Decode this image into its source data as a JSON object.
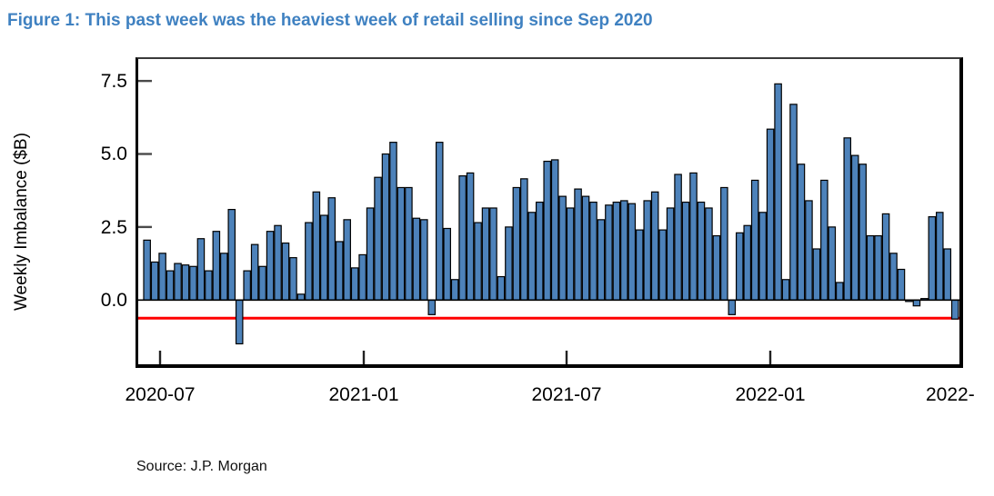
{
  "figure_title": "Figure 1: This past week was the heaviest week of retail selling since Sep 2020",
  "source": "Source: J.P. Morgan",
  "colors": {
    "title_blue": "#3f81c1",
    "bar_fill": "#4d82ba",
    "bar_edge": "#000000",
    "reference_red": "#ff0000",
    "axis_black": "#000000",
    "tick_gray": "#4a4a4a"
  },
  "chart_data": {
    "type": "bar",
    "title": "Figure 1: This past week was the heaviest week of retail selling since Sep 2020",
    "xlabel": "",
    "ylabel": "Weekly Imbalance ($B)",
    "x_interval": "weekly",
    "x_start": "2020-06-28",
    "x_tick_labels": [
      "2020-07",
      "2021-01",
      "2021-07",
      "2022-01",
      "2022-"
    ],
    "y_ticks": [
      0.0,
      2.5,
      5.0,
      7.5
    ],
    "ylim": [
      -2.2,
      8.25
    ],
    "grid": false,
    "legend": "none",
    "reference_line": {
      "value": -0.62,
      "color": "#ff0000"
    },
    "values": [
      2.05,
      1.3,
      1.6,
      1.0,
      1.25,
      1.2,
      1.15,
      2.1,
      1.0,
      2.35,
      1.6,
      3.1,
      -1.5,
      1.0,
      1.9,
      1.15,
      2.35,
      2.55,
      1.95,
      1.45,
      0.2,
      2.65,
      3.7,
      2.9,
      3.5,
      2.0,
      2.75,
      1.1,
      1.55,
      3.15,
      4.2,
      5.0,
      5.4,
      3.85,
      3.85,
      2.8,
      2.75,
      -0.5,
      5.4,
      2.45,
      0.7,
      4.25,
      4.35,
      2.65,
      3.15,
      3.15,
      0.8,
      2.5,
      3.85,
      4.15,
      3.0,
      3.35,
      4.75,
      4.8,
      3.55,
      3.15,
      3.8,
      3.55,
      3.35,
      2.75,
      3.25,
      3.35,
      3.4,
      3.3,
      2.4,
      3.4,
      3.7,
      2.4,
      3.15,
      4.3,
      3.35,
      4.35,
      3.35,
      3.15,
      2.2,
      3.85,
      -0.5,
      2.3,
      2.55,
      4.1,
      3.0,
      5.85,
      7.4,
      0.7,
      6.7,
      4.65,
      3.4,
      1.75,
      4.1,
      2.5,
      0.6,
      5.55,
      4.95,
      4.65,
      2.2,
      2.2,
      2.95,
      1.6,
      1.05,
      -0.05,
      -0.2,
      0.05,
      2.85,
      3.0,
      1.75,
      -0.65
    ]
  }
}
